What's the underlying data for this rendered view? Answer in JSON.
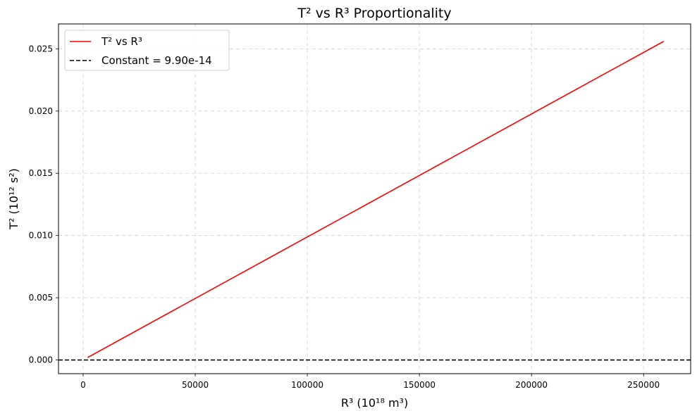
{
  "chart_data": {
    "type": "line",
    "title": "T² vs R³ Proportionality",
    "xlabel": "R³ (10¹⁸ m³)",
    "ylabel": "T² (10¹² s²)",
    "xlim": [
      -11000,
      271000
    ],
    "ylim": [
      -0.0011,
      0.027
    ],
    "x_ticks": [
      0,
      50000,
      100000,
      150000,
      200000,
      250000
    ],
    "x_tick_labels": [
      "0",
      "50000",
      "100000",
      "150000",
      "200000",
      "250000"
    ],
    "y_ticks": [
      0.0,
      0.005,
      0.01,
      0.015,
      0.02,
      0.025
    ],
    "y_tick_labels": [
      "0.000",
      "0.005",
      "0.010",
      "0.015",
      "0.020",
      "0.025"
    ],
    "grid": true,
    "legend_position": "top-left",
    "series": [
      {
        "name": "T² vs R³",
        "color": "#ff0000",
        "style": "solid",
        "x": [
          2000,
          259000
        ],
        "y": [
          0.0002,
          0.0256
        ]
      },
      {
        "name": "Constant = 9.90e-14",
        "color": "#000000",
        "style": "dashed",
        "kind": "hline",
        "y": 0.0
      }
    ]
  }
}
